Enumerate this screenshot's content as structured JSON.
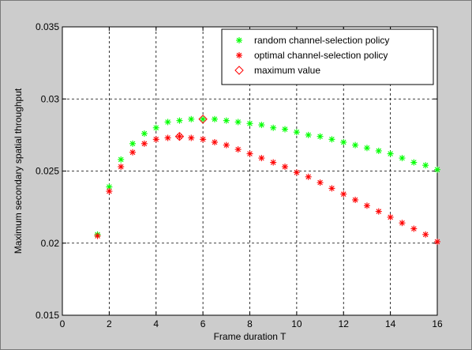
{
  "chart_data": {
    "type": "scatter",
    "xlabel": "Frame duration T",
    "ylabel": "Maximum secondary spatial throughput",
    "xlim": [
      0,
      16
    ],
    "ylim": [
      0.015,
      0.035
    ],
    "xticks": [
      0,
      2,
      4,
      6,
      8,
      10,
      12,
      14,
      16
    ],
    "yticks": [
      0.015,
      0.02,
      0.025,
      0.03,
      0.035
    ],
    "ytick_labels": [
      "0.015",
      "0.02",
      "0.025",
      "0.03",
      "0.035"
    ],
    "grid": true,
    "legend_position": "top-right",
    "series": [
      {
        "name": "random channel-selection policy",
        "marker": "star",
        "color": "#00ff00",
        "x": [
          1.5,
          2,
          2.5,
          3,
          3.5,
          4,
          4.5,
          5,
          5.5,
          6,
          6.5,
          7,
          7.5,
          8,
          8.5,
          9,
          9.5,
          10,
          10.5,
          11,
          11.5,
          12,
          12.5,
          13,
          13.5,
          14,
          14.5,
          15,
          15.5,
          16
        ],
        "y": [
          0.0206,
          0.0239,
          0.0258,
          0.0269,
          0.0276,
          0.028,
          0.0284,
          0.0285,
          0.0286,
          0.0286,
          0.0286,
          0.0285,
          0.0284,
          0.0283,
          0.0282,
          0.028,
          0.0279,
          0.0277,
          0.0275,
          0.0274,
          0.0272,
          0.027,
          0.0268,
          0.0266,
          0.0264,
          0.0262,
          0.0259,
          0.0256,
          0.0254,
          0.0251
        ]
      },
      {
        "name": "optimal channel-selection policy",
        "marker": "star",
        "color": "#ff0000",
        "x": [
          1.5,
          2,
          2.5,
          3,
          3.5,
          4,
          4.5,
          5,
          5.5,
          6,
          6.5,
          7,
          7.5,
          8,
          8.5,
          9,
          9.5,
          10,
          10.5,
          11,
          11.5,
          12,
          12.5,
          13,
          13.5,
          14,
          14.5,
          15,
          15.5,
          16
        ],
        "y": [
          0.0205,
          0.0236,
          0.0253,
          0.0263,
          0.0269,
          0.0272,
          0.0273,
          0.0274,
          0.0273,
          0.0272,
          0.027,
          0.0268,
          0.0265,
          0.0262,
          0.0259,
          0.0256,
          0.0253,
          0.0249,
          0.0246,
          0.0242,
          0.0238,
          0.0234,
          0.023,
          0.0226,
          0.0222,
          0.0218,
          0.0214,
          0.021,
          0.0206,
          0.0201
        ]
      },
      {
        "name": "maximum value",
        "marker": "diamond",
        "color": "#ff0000",
        "x": [
          5,
          6
        ],
        "y": [
          0.0274,
          0.0286
        ]
      }
    ]
  }
}
